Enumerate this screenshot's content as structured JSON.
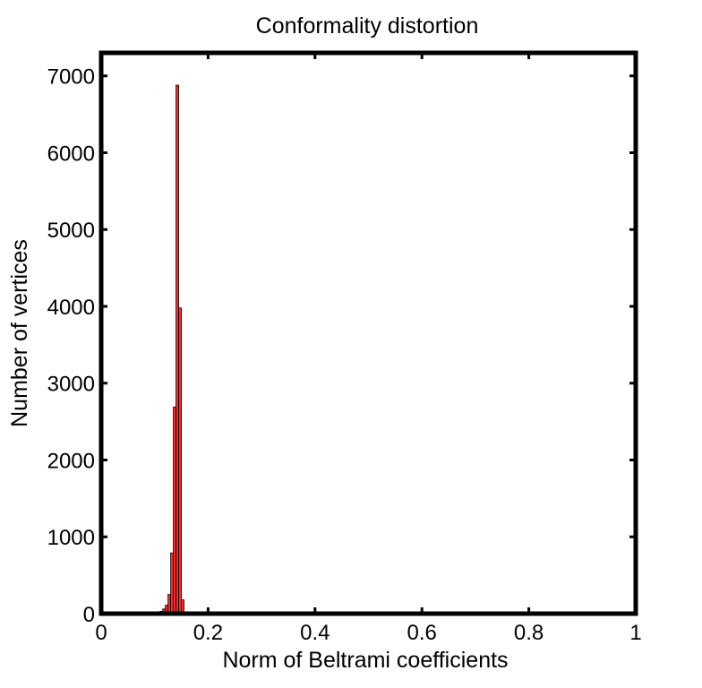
{
  "chart_data": {
    "type": "bar",
    "title": "Conformality distortion",
    "xlabel": "Norm of Beltrami coefficients",
    "ylabel": "Number of vertices",
    "xlim": [
      0,
      1
    ],
    "ylim": [
      0,
      7300
    ],
    "xticks": [
      0,
      0.2,
      0.4,
      0.6,
      0.8,
      1
    ],
    "xtick_labels": [
      "0",
      "0.2",
      "0.4",
      "0.6",
      "0.8",
      "1"
    ],
    "yticks": [
      0,
      1000,
      2000,
      3000,
      4000,
      5000,
      6000,
      7000
    ],
    "ytick_labels": [
      "0",
      "1000",
      "2000",
      "3000",
      "4000",
      "5000",
      "6000",
      "7000"
    ],
    "bin_width": 0.005,
    "bins": [
      {
        "x": 0.1075,
        "value": 15
      },
      {
        "x": 0.1125,
        "value": 30
      },
      {
        "x": 0.1175,
        "value": 60
      },
      {
        "x": 0.1225,
        "value": 110
      },
      {
        "x": 0.1275,
        "value": 250
      },
      {
        "x": 0.1325,
        "value": 790
      },
      {
        "x": 0.1375,
        "value": 2690
      },
      {
        "x": 0.1425,
        "value": 6880
      },
      {
        "x": 0.1475,
        "value": 3980
      },
      {
        "x": 0.1525,
        "value": 180
      }
    ],
    "bar_color": "#ff2a2a",
    "bar_edge_color": "#000000",
    "grid": false,
    "legend": "none"
  }
}
